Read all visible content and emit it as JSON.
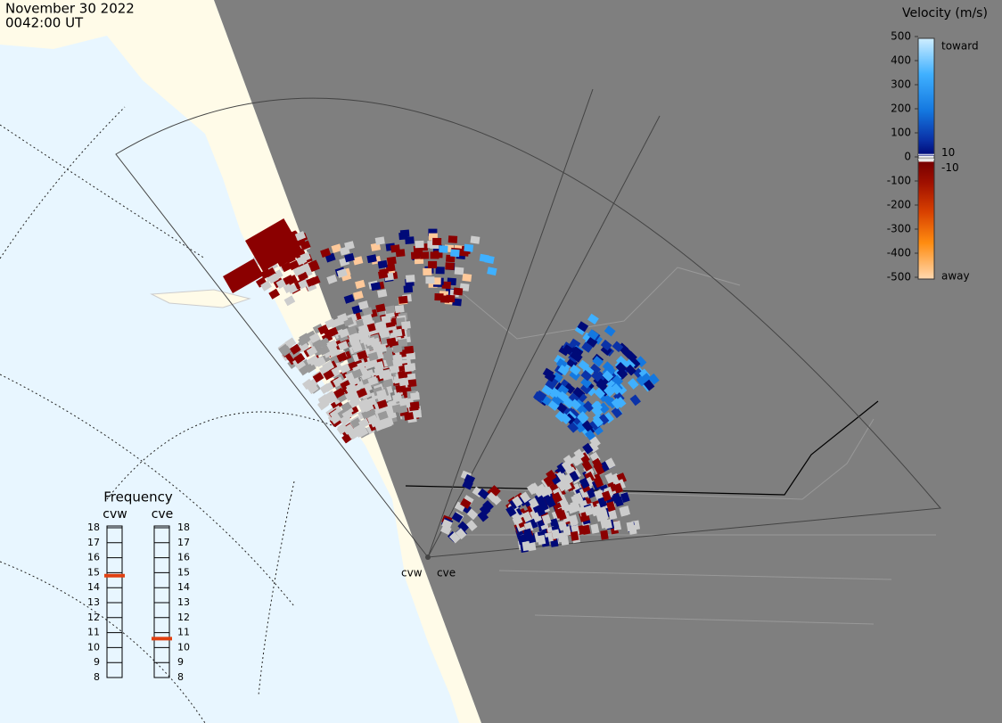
{
  "header": {
    "date": "November 30 2022",
    "time": "0042:00 UT"
  },
  "colorbar": {
    "title": "Velocity (m/s)",
    "ticks": [
      500,
      400,
      300,
      200,
      100,
      0,
      -100,
      -200,
      -300,
      -400,
      -500
    ],
    "toward": "toward",
    "away": "away",
    "inner_ticks": [
      10,
      -10
    ]
  },
  "frequency": {
    "title": "Frequency",
    "ticks": [
      8,
      9,
      10,
      11,
      12,
      13,
      14,
      15,
      16,
      17,
      18
    ],
    "radars": [
      {
        "name": "cvw",
        "value": 14.8
      },
      {
        "name": "cve",
        "value": 10.6
      }
    ]
  },
  "map": {
    "radar_labels": [
      "cvw",
      "cve"
    ]
  }
}
